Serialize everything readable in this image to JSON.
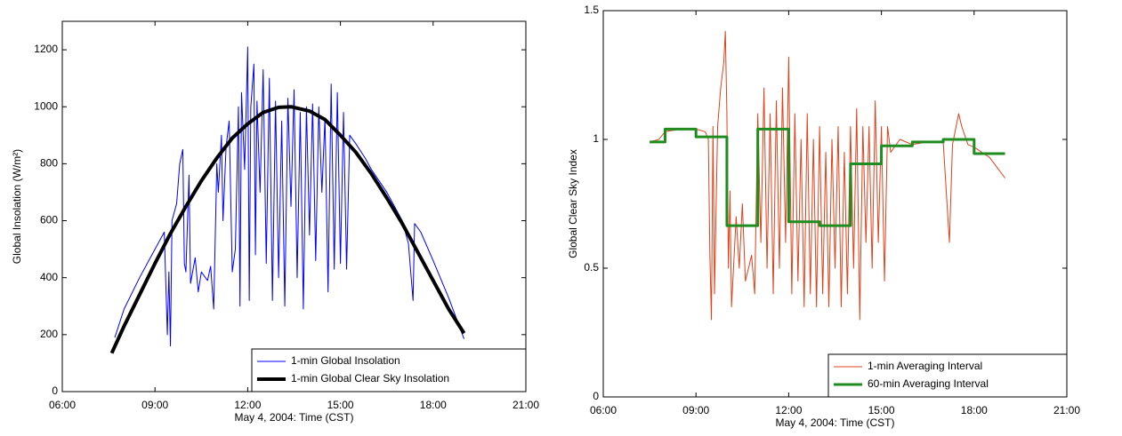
{
  "chart_data": [
    {
      "type": "line",
      "xlabel": "May 4, 2004: Time (CST)",
      "ylabel": "Global Insolation (W/m²)",
      "xlim": [
        6,
        21
      ],
      "xticks": [
        {
          "value": 6,
          "label": "06:00"
        },
        {
          "value": 9,
          "label": "09:00"
        },
        {
          "value": 12,
          "label": "12:00"
        },
        {
          "value": 15,
          "label": "15:00"
        },
        {
          "value": 18,
          "label": "18:00"
        },
        {
          "value": 21,
          "label": "21:00"
        }
      ],
      "ylim": [
        0,
        1300
      ],
      "yticks": [
        0,
        200,
        400,
        600,
        800,
        1000,
        1200
      ],
      "legend": "lower right",
      "series": [
        {
          "name": "1-min Global Insolation",
          "color": "#0000ff",
          "linewidth": 1,
          "step": false,
          "x": [
            7.7,
            8.0,
            8.5,
            9.0,
            9.3,
            9.4,
            9.45,
            9.5,
            9.55,
            9.7,
            9.8,
            9.9,
            9.95,
            10.0,
            10.1,
            10.15,
            10.3,
            10.4,
            10.5,
            10.7,
            10.8,
            10.9,
            11.0,
            11.05,
            11.15,
            11.2,
            11.3,
            11.4,
            11.5,
            11.6,
            11.7,
            11.75,
            11.8,
            11.9,
            12.0,
            12.05,
            12.1,
            12.2,
            12.25,
            12.3,
            12.4,
            12.5,
            12.6,
            12.7,
            12.8,
            12.9,
            13.0,
            13.1,
            13.2,
            13.3,
            13.4,
            13.5,
            13.6,
            13.7,
            13.8,
            13.9,
            14.0,
            14.1,
            14.2,
            14.3,
            14.4,
            14.5,
            14.6,
            14.7,
            14.8,
            14.9,
            15.0,
            15.1,
            15.2,
            15.3,
            15.5,
            15.8,
            16.0,
            16.5,
            17.0,
            17.2,
            17.35,
            17.4,
            17.6,
            18.0,
            18.5,
            19.0
          ],
          "values": [
            190,
            290,
            400,
            500,
            560,
            200,
            420,
            160,
            600,
            660,
            800,
            850,
            450,
            420,
            760,
            380,
            470,
            350,
            420,
            390,
            440,
            290,
            800,
            700,
            900,
            600,
            860,
            950,
            420,
            500,
            1000,
            300,
            1050,
            780,
            1210,
            320,
            1000,
            1150,
            480,
            1020,
            700,
            1130,
            450,
            1100,
            320,
            1020,
            400,
            950,
            300,
            1030,
            650,
            1060,
            400,
            980,
            290,
            1000,
            550,
            1010,
            460,
            1000,
            700,
            960,
            350,
            1080,
            430,
            1050,
            450,
            980,
            430,
            900,
            870,
            820,
            780,
            700,
            600,
            520,
            320,
            590,
            560,
            460,
            330,
            185
          ]
        },
        {
          "name": "1-min Global Clear Sky Insolation",
          "color": "#000000",
          "linewidth": 4,
          "step": false,
          "x": [
            7.6,
            8,
            8.5,
            9,
            9.5,
            10,
            10.5,
            11,
            11.5,
            12,
            12.5,
            13,
            13.4,
            14,
            14.5,
            15,
            15.5,
            16,
            16.5,
            17,
            17.5,
            18,
            18.5,
            19
          ],
          "values": [
            135,
            230,
            340,
            450,
            555,
            650,
            740,
            820,
            890,
            940,
            980,
            998,
            1000,
            985,
            955,
            900,
            840,
            765,
            680,
            590,
            490,
            390,
            290,
            205
          ]
        }
      ]
    },
    {
      "type": "line",
      "xlabel": "May 4, 2004: Time (CST)",
      "ylabel": "Global Clear Sky Index",
      "xlim": [
        6,
        21
      ],
      "xticks": [
        {
          "value": 6,
          "label": "06:00"
        },
        {
          "value": 9,
          "label": "09:00"
        },
        {
          "value": 12,
          "label": "12:00"
        },
        {
          "value": 15,
          "label": "15:00"
        },
        {
          "value": 18,
          "label": "18:00"
        },
        {
          "value": 21,
          "label": "21:00"
        }
      ],
      "ylim": [
        0,
        1.5
      ],
      "yticks": [
        0,
        0.5,
        1,
        1.5
      ],
      "legend": "lower right",
      "series": [
        {
          "name": "1-min Averaging Interval",
          "color": "#e0401a",
          "linewidth": 1,
          "step": false,
          "x": [
            7.5,
            7.8,
            8.0,
            8.5,
            9.0,
            9.3,
            9.4,
            9.45,
            9.5,
            9.55,
            9.6,
            9.7,
            9.8,
            9.9,
            9.95,
            10.0,
            10.05,
            10.1,
            10.15,
            10.3,
            10.4,
            10.5,
            10.6,
            10.8,
            10.9,
            11.0,
            11.1,
            11.2,
            11.3,
            11.4,
            11.5,
            11.6,
            11.7,
            11.8,
            11.9,
            12.0,
            12.1,
            12.2,
            12.3,
            12.4,
            12.5,
            12.6,
            12.7,
            12.8,
            12.9,
            13.0,
            13.1,
            13.2,
            13.3,
            13.4,
            13.5,
            13.6,
            13.7,
            13.8,
            13.9,
            14.0,
            14.1,
            14.2,
            14.3,
            14.4,
            14.5,
            14.6,
            14.7,
            14.8,
            14.9,
            15.0,
            15.1,
            15.2,
            15.3,
            15.6,
            16.0,
            16.5,
            17.0,
            17.2,
            17.3,
            17.5,
            17.6,
            17.8,
            18.0,
            18.5,
            19.0
          ],
          "values": [
            0.99,
            1.0,
            1.03,
            1.04,
            1.04,
            1.03,
            1.0,
            0.55,
            0.3,
            1.05,
            0.4,
            1.05,
            1.2,
            1.3,
            1.42,
            1.1,
            0.5,
            0.8,
            0.35,
            0.7,
            0.5,
            0.75,
            0.45,
            0.55,
            0.4,
            1.1,
            0.6,
            1.2,
            0.5,
            1.1,
            0.4,
            1.15,
            0.5,
            1.2,
            0.6,
            1.32,
            0.4,
            1.1,
            0.45,
            1.0,
            0.35,
            1.1,
            0.4,
            1.0,
            0.35,
            1.05,
            0.4,
            0.95,
            0.35,
            1.0,
            0.5,
            1.05,
            0.35,
            0.95,
            0.4,
            1.05,
            0.5,
            1.12,
            0.3,
            1.05,
            0.6,
            1.05,
            0.5,
            1.15,
            0.6,
            1.05,
            0.45,
            1.05,
            0.95,
            1.0,
            0.98,
            0.99,
            0.99,
            0.6,
            0.98,
            1.1,
            1.05,
            0.98,
            0.97,
            0.93,
            0.85
          ]
        },
        {
          "name": "60-min Averaging Interval",
          "color": "#1e8c1e",
          "linewidth": 3,
          "step": true,
          "x": [
            7.5,
            8,
            9,
            10,
            11,
            12,
            13,
            14,
            15,
            16,
            17,
            18,
            19
          ],
          "values": [
            0.99,
            1.04,
            1.01,
            0.665,
            1.04,
            0.68,
            0.665,
            0.905,
            0.975,
            0.99,
            1.0,
            0.945,
            0.945
          ]
        }
      ]
    }
  ]
}
